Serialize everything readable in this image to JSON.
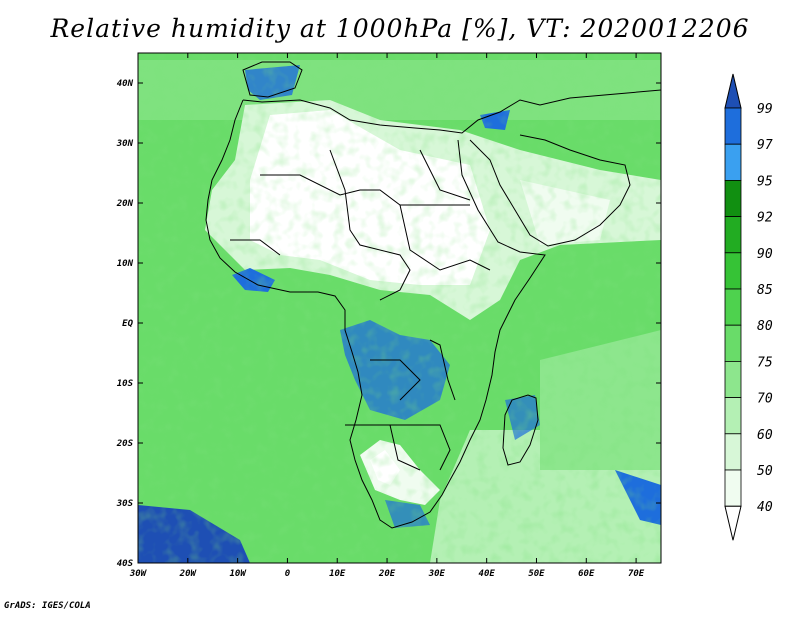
{
  "title": "Relative humidity at 1000hPa [%], VT: 2020012206",
  "credit": "GrADS: IGES/COLA",
  "map": {
    "projection": "latlon",
    "lon_range": [
      -30,
      75
    ],
    "lat_range": [
      -40,
      45
    ],
    "lon_ticks": [
      "30W",
      "20W",
      "10W",
      "0",
      "10E",
      "20E",
      "30E",
      "40E",
      "50E",
      "60E",
      "70E"
    ],
    "lat_ticks": [
      "40N",
      "30N",
      "20N",
      "10N",
      "EQ",
      "10S",
      "20S",
      "30S",
      "40S"
    ]
  },
  "colorbar": {
    "levels": [
      "99",
      "97",
      "95",
      "92",
      "90",
      "85",
      "80",
      "75",
      "70",
      "60",
      "50",
      "40"
    ],
    "colors": {
      "lt40": "#ffffff",
      "40_50": "#f0fcf0",
      "50_60": "#d7f7d7",
      "60_70": "#b4f0b4",
      "70_75": "#8de68d",
      "75_80": "#69dc69",
      "80_85": "#4ed24e",
      "85_90": "#36c336",
      "90_92": "#22ac22",
      "92_95": "#118f11",
      "95_97": "#3aa0f0",
      "97_99": "#1e6edc",
      "gt99": "#1e4fb4"
    }
  }
}
